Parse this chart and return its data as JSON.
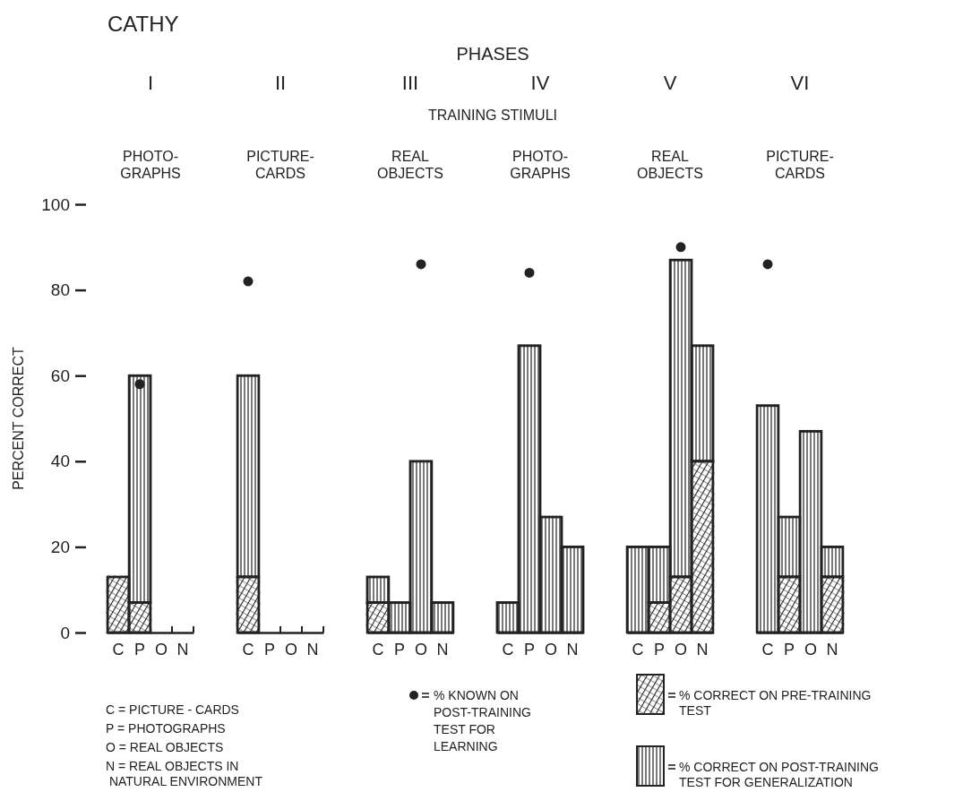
{
  "chart_data": [
    {
      "type": "other",
      "title": "CATHY",
      "annotations": [
        "PHASES",
        "TRAINING STIMULI",
        "C = PICTURE - CARDS",
        "P = PHOTOGRAPHS",
        "O = REAL OBJECTS",
        "N = REAL OBJECTS IN\nNATURAL ENVIRONMENT"
      ]
    },
    {
      "type": "bar",
      "title": "I",
      "subtitle": "PHOTO-\nGRAPHS",
      "ylabel": "PERCENT CORRECT",
      "categories": [
        "C",
        "P",
        "O",
        "N"
      ],
      "ylim": [
        0,
        100
      ],
      "yticks": [
        0,
        20,
        40,
        60,
        80,
        100
      ],
      "marker": "circle",
      "legend": "bottom",
      "stacked": true,
      "series": [
        {
          "name": "% KNOWN ON POST-TRAINING TEST FOR LEARNING",
          "type": "scatter",
          "color": "#222222",
          "values": [
            null,
            58,
            null,
            null
          ]
        },
        {
          "name": "% CORRECT ON PRE-TRAINING TEST",
          "type": "bar",
          "color": "#222222",
          "values": [
            13,
            7,
            null,
            null
          ]
        },
        {
          "name": "% CORRECT ON POST-TRAINING TEST FOR GENERALIZATION",
          "type": "bar",
          "color": "#222222",
          "values": [
            null,
            53,
            0,
            0
          ]
        }
      ]
    },
    {
      "type": "bar",
      "title": "II",
      "subtitle": "PICTURE-\nCARDS",
      "categories": [
        "C",
        "P",
        "O",
        "N"
      ],
      "ylim": [
        0,
        100
      ],
      "tick_labels": "x",
      "marker": "circle",
      "stacked": true,
      "series": [
        {
          "type": "scatter",
          "color": "#222222",
          "values": [
            82,
            null,
            null,
            null
          ]
        },
        {
          "type": "bar",
          "color": "#222222",
          "values": [
            13,
            null,
            null,
            null
          ]
        },
        {
          "type": "bar",
          "color": "#222222",
          "values": [
            47,
            0,
            0,
            0
          ]
        }
      ]
    },
    {
      "type": "bar",
      "title": "III",
      "subtitle": "REAL\nOBJECTS",
      "categories": [
        "C",
        "P",
        "O",
        "N"
      ],
      "ylim": [
        0,
        100
      ],
      "tick_labels": "x",
      "marker": "circle",
      "stacked": true,
      "series": [
        {
          "type": "scatter",
          "color": "#222222",
          "values": [
            null,
            null,
            86,
            null
          ]
        },
        {
          "type": "bar",
          "color": "#222222",
          "values": [
            7,
            null,
            null,
            null
          ]
        },
        {
          "type": "bar",
          "color": "#222222",
          "values": [
            6,
            7,
            40,
            7
          ]
        }
      ]
    },
    {
      "type": "bar",
      "title": "IV",
      "subtitle": "PHOTO-\nGRAPHS",
      "categories": [
        "C",
        "P",
        "O",
        "N"
      ],
      "ylim": [
        0,
        100
      ],
      "tick_labels": "x",
      "marker": "circle",
      "series": [
        {
          "type": "scatter",
          "color": "#222222",
          "values": [
            null,
            84,
            null,
            null
          ]
        },
        {
          "type": "bar",
          "color": "#222222",
          "values": [
            7,
            67,
            27,
            20
          ]
        }
      ]
    },
    {
      "type": "bar",
      "title": "V",
      "subtitle": "REAL\nOBJECTS",
      "categories": [
        "C",
        "P",
        "O",
        "N"
      ],
      "ylim": [
        0,
        100
      ],
      "tick_labels": "x",
      "marker": "circle",
      "stacked": true,
      "series": [
        {
          "type": "scatter",
          "color": "#222222",
          "values": [
            null,
            null,
            90,
            null
          ]
        },
        {
          "type": "bar",
          "color": "#222222",
          "values": [
            null,
            7,
            13,
            40
          ]
        },
        {
          "type": "bar",
          "color": "#222222",
          "values": [
            20,
            13,
            74,
            27
          ]
        }
      ]
    },
    {
      "type": "bar",
      "title": "VI",
      "subtitle": "PICTURE-\nCARDS",
      "categories": [
        "C",
        "P",
        "O",
        "N"
      ],
      "ylim": [
        0,
        100
      ],
      "tick_labels": "x",
      "marker": "circle",
      "stacked": true,
      "series": [
        {
          "type": "scatter",
          "color": "#222222",
          "values": [
            86,
            null,
            null,
            null
          ]
        },
        {
          "type": "bar",
          "color": "#222222",
          "values": [
            null,
            13,
            null,
            13
          ]
        },
        {
          "type": "bar",
          "color": "#222222",
          "values": [
            53,
            14,
            47,
            7
          ]
        }
      ]
    }
  ]
}
